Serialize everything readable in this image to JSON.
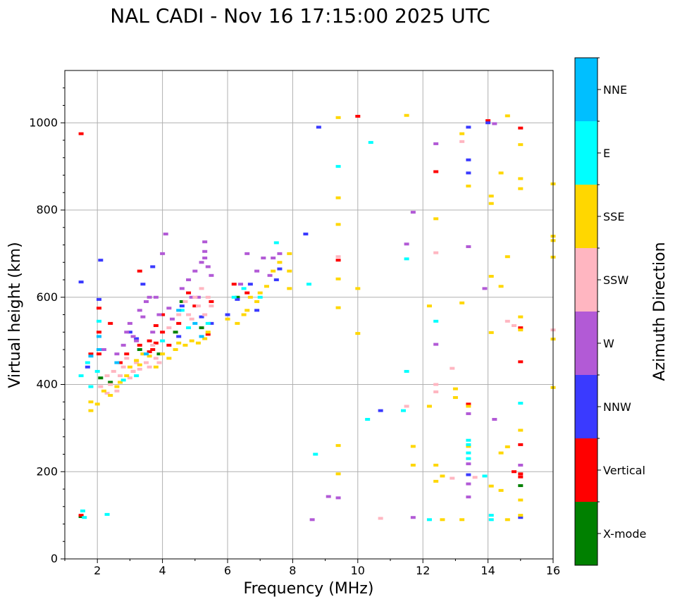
{
  "chart_data": {
    "type": "scatter",
    "title": "NAL CADI - Nov 16 17:15:00 2025 UTC",
    "xlabel": "Frequency (MHz)",
    "ylabel": "Virtual height (km)",
    "xlim": [
      1,
      16
    ],
    "ylim": [
      0,
      1120
    ],
    "xticks": [
      2,
      4,
      6,
      8,
      10,
      12,
      14,
      16
    ],
    "yticks": [
      0,
      200,
      400,
      600,
      800,
      1000
    ],
    "grid": true,
    "colorbar": {
      "label": "Azimuth Direction",
      "categories": [
        {
          "name": "X-mode",
          "color": "#008000"
        },
        {
          "name": "Vertical",
          "color": "#ff0000"
        },
        {
          "name": "NNW",
          "color": "#3a3aff"
        },
        {
          "name": "W",
          "color": "#b25ad6"
        },
        {
          "name": "SSW",
          "color": "#ffb6c1"
        },
        {
          "name": "SSE",
          "color": "#ffd700"
        },
        {
          "name": "E",
          "color": "#00ffff"
        },
        {
          "name": "NNE",
          "color": "#00bfff"
        }
      ]
    },
    "series": [
      {
        "name": "X-mode",
        "points": [
          [
            1.5,
            97
          ],
          [
            2.1,
            415
          ],
          [
            2.4,
            405
          ],
          [
            3.3,
            480
          ],
          [
            3.9,
            470
          ],
          [
            4.6,
            590
          ],
          [
            4.4,
            520
          ],
          [
            5.2,
            530
          ],
          [
            6.3,
            600
          ],
          [
            15.0,
            168
          ]
        ]
      },
      {
        "name": "Vertical",
        "points": [
          [
            1.5,
            975
          ],
          [
            1.5,
            100
          ],
          [
            1.8,
            470
          ],
          [
            2.05,
            575
          ],
          [
            2.05,
            520
          ],
          [
            2.05,
            470
          ],
          [
            2.7,
            450
          ],
          [
            2.9,
            470
          ],
          [
            3.1,
            430
          ],
          [
            3.3,
            490
          ],
          [
            3.6,
            500
          ],
          [
            3.7,
            480
          ],
          [
            3.6,
            475
          ],
          [
            3.8,
            535
          ],
          [
            3.8,
            495
          ],
          [
            4.0,
            520
          ],
          [
            4.2,
            490
          ],
          [
            4.5,
            540
          ],
          [
            4.8,
            610
          ],
          [
            5.0,
            580
          ],
          [
            5.4,
            515
          ],
          [
            5.5,
            590
          ],
          [
            6.2,
            630
          ],
          [
            6.6,
            610
          ],
          [
            3.3,
            660
          ],
          [
            4.0,
            560
          ],
          [
            2.4,
            540
          ],
          [
            9.4,
            685
          ],
          [
            10.0,
            1015
          ],
          [
            12.4,
            888
          ],
          [
            14.0,
            1005
          ],
          [
            15.0,
            988
          ],
          [
            15.0,
            530
          ],
          [
            15.0,
            452
          ],
          [
            15.0,
            262
          ],
          [
            15.0,
            195
          ],
          [
            15.0,
            188
          ],
          [
            13.4,
            355
          ],
          [
            14.8,
            200
          ]
        ]
      },
      {
        "name": "NNW",
        "points": [
          [
            1.5,
            635
          ],
          [
            2.1,
            685
          ],
          [
            2.05,
            595
          ],
          [
            1.7,
            440
          ],
          [
            3.0,
            520
          ],
          [
            3.2,
            505
          ],
          [
            3.4,
            630
          ],
          [
            3.7,
            670
          ],
          [
            3.9,
            560
          ],
          [
            4.5,
            510
          ],
          [
            4.6,
            580
          ],
          [
            5.2,
            555
          ],
          [
            5.5,
            540
          ],
          [
            6.0,
            560
          ],
          [
            6.3,
            595
          ],
          [
            6.7,
            630
          ],
          [
            6.9,
            570
          ],
          [
            7.5,
            640
          ],
          [
            7.6,
            665
          ],
          [
            8.4,
            745
          ],
          [
            8.8,
            990
          ],
          [
            10.7,
            340
          ],
          [
            13.4,
            990
          ],
          [
            13.4,
            915
          ],
          [
            13.4,
            885
          ],
          [
            13.4,
            193
          ],
          [
            14.0,
            1000
          ],
          [
            15.0,
            95
          ]
        ]
      },
      {
        "name": "W",
        "points": [
          [
            2.2,
            480
          ],
          [
            2.6,
            470
          ],
          [
            2.8,
            490
          ],
          [
            2.9,
            520
          ],
          [
            3.0,
            540
          ],
          [
            3.1,
            510
          ],
          [
            3.2,
            500
          ],
          [
            3.3,
            570
          ],
          [
            3.4,
            555
          ],
          [
            3.5,
            590
          ],
          [
            3.6,
            600
          ],
          [
            3.7,
            520
          ],
          [
            3.8,
            600
          ],
          [
            3.9,
            560
          ],
          [
            4.0,
            700
          ],
          [
            4.1,
            745
          ],
          [
            4.2,
            575
          ],
          [
            4.3,
            550
          ],
          [
            4.6,
            620
          ],
          [
            4.8,
            640
          ],
          [
            4.9,
            600
          ],
          [
            5.0,
            660
          ],
          [
            5.1,
            600
          ],
          [
            5.2,
            680
          ],
          [
            5.3,
            690
          ],
          [
            5.4,
            670
          ],
          [
            5.5,
            650
          ],
          [
            5.3,
            727
          ],
          [
            5.3,
            705
          ],
          [
            6.4,
            630
          ],
          [
            6.6,
            700
          ],
          [
            6.9,
            660
          ],
          [
            7.1,
            690
          ],
          [
            7.3,
            650
          ],
          [
            7.4,
            690
          ],
          [
            7.6,
            700
          ],
          [
            11.7,
            795
          ],
          [
            11.5,
            722
          ],
          [
            12.4,
            952
          ],
          [
            12.4,
            492
          ],
          [
            13.4,
            716
          ],
          [
            13.4,
            333
          ],
          [
            13.4,
            218
          ],
          [
            13.4,
            172
          ],
          [
            13.4,
            142
          ],
          [
            13.9,
            620
          ],
          [
            14.2,
            998
          ],
          [
            14.2,
            320
          ],
          [
            15.0,
            215
          ],
          [
            9.1,
            143
          ],
          [
            9.4,
            140
          ],
          [
            8.6,
            90
          ],
          [
            11.7,
            95
          ]
        ]
      },
      {
        "name": "SSW",
        "points": [
          [
            2.1,
            395
          ],
          [
            2.3,
            420
          ],
          [
            2.3,
            380
          ],
          [
            2.4,
            400
          ],
          [
            2.5,
            430
          ],
          [
            2.6,
            385
          ],
          [
            2.7,
            420
          ],
          [
            2.8,
            440
          ],
          [
            2.9,
            460
          ],
          [
            3.0,
            415
          ],
          [
            3.1,
            430
          ],
          [
            3.2,
            450
          ],
          [
            3.3,
            435
          ],
          [
            3.4,
            470
          ],
          [
            3.5,
            450
          ],
          [
            3.6,
            440
          ],
          [
            3.7,
            490
          ],
          [
            3.8,
            460
          ],
          [
            3.9,
            450
          ],
          [
            4.0,
            500
          ],
          [
            4.2,
            530
          ],
          [
            4.4,
            480
          ],
          [
            4.5,
            560
          ],
          [
            4.7,
            590
          ],
          [
            4.8,
            560
          ],
          [
            5.0,
            600
          ],
          [
            5.1,
            580
          ],
          [
            5.3,
            560
          ],
          [
            5.4,
            600
          ],
          [
            5.5,
            580
          ],
          [
            5.2,
            620
          ],
          [
            4.9,
            550
          ],
          [
            9.4,
            693
          ],
          [
            12.4,
            702
          ],
          [
            12.4,
            400
          ],
          [
            12.4,
            383
          ],
          [
            12.9,
            437
          ],
          [
            13.2,
            957
          ],
          [
            14.6,
            545
          ],
          [
            14.8,
            535
          ],
          [
            16.0,
            525
          ],
          [
            11.5,
            350
          ],
          [
            10.7,
            93
          ],
          [
            12.9,
            185
          ],
          [
            13.6,
            187
          ]
        ]
      },
      {
        "name": "SSE",
        "points": [
          [
            1.8,
            360
          ],
          [
            1.8,
            340
          ],
          [
            2.0,
            355
          ],
          [
            2.2,
            385
          ],
          [
            2.4,
            375
          ],
          [
            2.6,
            395
          ],
          [
            2.7,
            405
          ],
          [
            2.9,
            420
          ],
          [
            3.0,
            440
          ],
          [
            3.2,
            455
          ],
          [
            3.3,
            445
          ],
          [
            3.4,
            470
          ],
          [
            3.6,
            465
          ],
          [
            3.8,
            440
          ],
          [
            4.0,
            470
          ],
          [
            4.2,
            460
          ],
          [
            4.4,
            480
          ],
          [
            4.5,
            495
          ],
          [
            4.7,
            490
          ],
          [
            4.9,
            500
          ],
          [
            5.1,
            495
          ],
          [
            5.3,
            505
          ],
          [
            5.4,
            520
          ],
          [
            6.0,
            550
          ],
          [
            6.3,
            540
          ],
          [
            6.5,
            560
          ],
          [
            6.6,
            570
          ],
          [
            6.7,
            600
          ],
          [
            6.9,
            590
          ],
          [
            7.0,
            610
          ],
          [
            7.2,
            625
          ],
          [
            7.4,
            660
          ],
          [
            7.6,
            680
          ],
          [
            7.9,
            700
          ],
          [
            7.9,
            660
          ],
          [
            7.9,
            620
          ],
          [
            9.4,
            1012
          ],
          [
            9.4,
            828
          ],
          [
            9.4,
            767
          ],
          [
            9.4,
            642
          ],
          [
            9.4,
            576
          ],
          [
            9.4,
            260
          ],
          [
            9.4,
            195
          ],
          [
            10.0,
            620
          ],
          [
            10.0,
            517
          ],
          [
            11.5,
            1017
          ],
          [
            12.2,
            580
          ],
          [
            12.4,
            780
          ],
          [
            12.2,
            350
          ],
          [
            12.4,
            215
          ],
          [
            12.4,
            178
          ],
          [
            12.6,
            190
          ],
          [
            12.6,
            90
          ],
          [
            13.0,
            390
          ],
          [
            13.0,
            370
          ],
          [
            13.2,
            975
          ],
          [
            13.2,
            587
          ],
          [
            13.2,
            90
          ],
          [
            13.4,
            855
          ],
          [
            13.4,
            350
          ],
          [
            13.4,
            258
          ],
          [
            14.1,
            832
          ],
          [
            14.1,
            815
          ],
          [
            14.1,
            648
          ],
          [
            14.1,
            519
          ],
          [
            14.1,
            167
          ],
          [
            14.4,
            885
          ],
          [
            14.4,
            625
          ],
          [
            14.4,
            243
          ],
          [
            14.4,
            157
          ],
          [
            14.6,
            1016
          ],
          [
            14.6,
            693
          ],
          [
            14.6,
            257
          ],
          [
            14.6,
            90
          ],
          [
            15.0,
            950
          ],
          [
            15.0,
            872
          ],
          [
            15.0,
            849
          ],
          [
            15.0,
            555
          ],
          [
            15.0,
            525
          ],
          [
            15.0,
            295
          ],
          [
            15.0,
            135
          ],
          [
            15.0,
            100
          ],
          [
            16.0,
            860
          ],
          [
            16.0,
            740
          ],
          [
            16.0,
            730
          ],
          [
            16.0,
            692
          ],
          [
            16.0,
            504
          ],
          [
            16.0,
            393
          ],
          [
            11.7,
            258
          ],
          [
            11.7,
            215
          ]
        ]
      },
      {
        "name": "E",
        "points": [
          [
            1.5,
            420
          ],
          [
            1.55,
            110
          ],
          [
            1.6,
            95
          ],
          [
            1.7,
            450
          ],
          [
            1.8,
            395
          ],
          [
            2.0,
            430
          ],
          [
            2.05,
            545
          ],
          [
            2.3,
            102
          ],
          [
            2.8,
            410
          ],
          [
            3.2,
            420
          ],
          [
            4.0,
            500
          ],
          [
            4.6,
            570
          ],
          [
            4.8,
            530
          ],
          [
            5.4,
            540
          ],
          [
            6.2,
            600
          ],
          [
            6.5,
            620
          ],
          [
            7.0,
            600
          ],
          [
            7.5,
            725
          ],
          [
            8.5,
            630
          ],
          [
            8.7,
            240
          ],
          [
            9.4,
            900
          ],
          [
            10.3,
            320
          ],
          [
            10.4,
            955
          ],
          [
            11.5,
            688
          ],
          [
            11.5,
            430
          ],
          [
            11.4,
            340
          ],
          [
            12.2,
            90
          ],
          [
            12.4,
            545
          ],
          [
            13.4,
            272
          ],
          [
            13.4,
            262
          ],
          [
            13.4,
            243
          ],
          [
            13.4,
            230
          ],
          [
            13.9,
            190
          ],
          [
            14.1,
            100
          ],
          [
            14.1,
            90
          ],
          [
            15.0,
            357
          ]
        ]
      },
      {
        "name": "NNE",
        "points": [
          [
            1.8,
            465
          ],
          [
            2.05,
            510
          ],
          [
            2.05,
            480
          ],
          [
            2.6,
            450
          ],
          [
            3.5,
            470
          ],
          [
            4.5,
            570
          ],
          [
            5.0,
            540
          ],
          [
            5.2,
            510
          ]
        ]
      }
    ]
  }
}
